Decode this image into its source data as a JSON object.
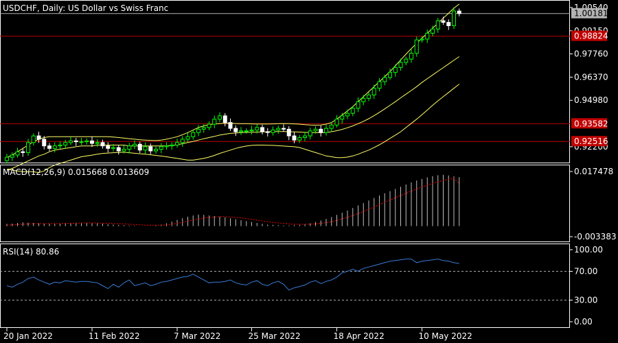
{
  "chart_data": [
    {
      "type": "candlestick",
      "title": "USDCHF, Daily:  US Dollar vs Swiss Franc",
      "ylim": [
        0.9125,
        1.0095
      ],
      "yticks": [
        {
          "label": "1.00540",
          "value": 1.0054
        },
        {
          "label": "0.99150",
          "value": 0.9915
        },
        {
          "label": "0.97760",
          "value": 0.9776
        },
        {
          "label": "0.96370",
          "value": 0.9637
        },
        {
          "label": "0.94980",
          "value": 0.9498
        },
        {
          "label": "0.92200",
          "value": 0.922
        }
      ],
      "xticks": [
        {
          "label": "20 Jan 2022",
          "index": 0
        },
        {
          "label": "11 Feb 2022",
          "index": 16
        },
        {
          "label": "7 Mar 2022",
          "index": 32
        },
        {
          "label": "25 Mar 2022",
          "index": 46
        },
        {
          "label": "18 Apr 2022",
          "index": 62
        },
        {
          "label": "10 May 2022",
          "index": 78
        }
      ],
      "current_price": {
        "label": "1.00181",
        "value": 1.00181,
        "color": "#b3b3b3"
      },
      "horizontal_lines": [
        {
          "label": "0.98824",
          "value": 0.98824,
          "color": "#c00000"
        },
        {
          "label": "0.93582",
          "value": 0.93582,
          "color": "#c00000"
        },
        {
          "label": "0.92516",
          "value": 0.92516,
          "color": "#c00000"
        }
      ],
      "up_color": "#00ff00",
      "down_color": "#ffffff",
      "band_color": "#ffff66",
      "close": [
        0.9157,
        0.917,
        0.919,
        0.9185,
        0.9245,
        0.9285,
        0.9265,
        0.9225,
        0.921,
        0.9225,
        0.923,
        0.9245,
        0.9255,
        0.925,
        0.925,
        0.9255,
        0.924,
        0.9245,
        0.9225,
        0.921,
        0.9215,
        0.9195,
        0.9205,
        0.9225,
        0.9235,
        0.92,
        0.922,
        0.9195,
        0.9205,
        0.922,
        0.9225,
        0.923,
        0.9245,
        0.9265,
        0.928,
        0.9305,
        0.9325,
        0.9335,
        0.9355,
        0.9385,
        0.9405,
        0.9365,
        0.933,
        0.931,
        0.9315,
        0.9315,
        0.932,
        0.9335,
        0.931,
        0.9305,
        0.932,
        0.933,
        0.9325,
        0.9285,
        0.926,
        0.9275,
        0.9285,
        0.9315,
        0.9325,
        0.9305,
        0.933,
        0.935,
        0.9385,
        0.9405,
        0.942,
        0.945,
        0.949,
        0.951,
        0.953,
        0.957,
        0.961,
        0.9635,
        0.9665,
        0.9695,
        0.9725,
        0.9745,
        0.978,
        0.986,
        0.9865,
        0.99,
        0.9925,
        0.9975,
        0.9965,
        0.9945,
        1.0033,
        1.0018
      ],
      "bollinger": {
        "period": 20,
        "middle": [
          0.908,
          0.909,
          0.9105,
          0.912,
          0.9135,
          0.915,
          0.9165,
          0.9175,
          0.919,
          0.92,
          0.9205,
          0.921,
          0.9215,
          0.922,
          0.9225,
          0.9225,
          0.9225,
          0.923,
          0.923,
          0.923,
          0.923,
          0.923,
          0.923,
          0.9225,
          0.9225,
          0.9225,
          0.9225,
          0.9225,
          0.9225,
          0.9225,
          0.9225,
          0.9228,
          0.9232,
          0.9238,
          0.9245,
          0.9252,
          0.926,
          0.9268,
          0.9275,
          0.9282,
          0.929,
          0.9295,
          0.93,
          0.9302,
          0.9305,
          0.9306,
          0.9307,
          0.9308,
          0.9309,
          0.931,
          0.9311,
          0.9311,
          0.9311,
          0.931,
          0.9309,
          0.9308,
          0.9306,
          0.9305,
          0.9304,
          0.9304,
          0.9305,
          0.931,
          0.9316,
          0.9324,
          0.9334,
          0.9345,
          0.9358,
          0.9372,
          0.9388,
          0.9406,
          0.9426,
          0.9447,
          0.9468,
          0.949,
          0.9513,
          0.9535,
          0.9557,
          0.958,
          0.9605,
          0.9628,
          0.965,
          0.9672,
          0.9694,
          0.9716,
          0.9738,
          0.976
        ],
        "upper": [
          0.9155,
          0.917,
          0.919,
          0.921,
          0.923,
          0.925,
          0.9265,
          0.9275,
          0.928,
          0.928,
          0.928,
          0.928,
          0.928,
          0.928,
          0.928,
          0.928,
          0.928,
          0.928,
          0.928,
          0.928,
          0.9278,
          0.9275,
          0.9272,
          0.9268,
          0.9265,
          0.9262,
          0.926,
          0.9258,
          0.9257,
          0.926,
          0.9265,
          0.9272,
          0.928,
          0.9292,
          0.9305,
          0.932,
          0.9335,
          0.9345,
          0.9352,
          0.9356,
          0.9359,
          0.936,
          0.936,
          0.9359,
          0.9358,
          0.9358,
          0.9357,
          0.9356,
          0.9356,
          0.9356,
          0.9357,
          0.9358,
          0.9359,
          0.9358,
          0.9357,
          0.9355,
          0.9352,
          0.935,
          0.9349,
          0.935,
          0.9355,
          0.9365,
          0.9385,
          0.941,
          0.9435,
          0.946,
          0.949,
          0.952,
          0.955,
          0.958,
          0.961,
          0.964,
          0.967,
          0.9705,
          0.974,
          0.9775,
          0.9808,
          0.984,
          0.987,
          0.99,
          0.993,
          0.996,
          0.999,
          1.002,
          1.005,
          1.0075
        ],
        "lower": [
          0.9085,
          0.908,
          0.9075,
          0.907,
          0.907,
          0.907,
          0.9065,
          0.9075,
          0.9095,
          0.911,
          0.912,
          0.913,
          0.914,
          0.915,
          0.916,
          0.9165,
          0.917,
          0.9175,
          0.918,
          0.9182,
          0.9184,
          0.9186,
          0.9187,
          0.9184,
          0.9181,
          0.9178,
          0.9175,
          0.9172,
          0.9168,
          0.9164,
          0.916,
          0.9155,
          0.915,
          0.9145,
          0.914,
          0.914,
          0.9145,
          0.915,
          0.9158,
          0.9168,
          0.918,
          0.919,
          0.92,
          0.921,
          0.9218,
          0.9224,
          0.9228,
          0.923,
          0.923,
          0.9229,
          0.9228,
          0.9226,
          0.9224,
          0.9222,
          0.922,
          0.9215,
          0.9205,
          0.9195,
          0.9185,
          0.9175,
          0.9165,
          0.916,
          0.9155,
          0.9155,
          0.9158,
          0.9165,
          0.9175,
          0.9188,
          0.92,
          0.9215,
          0.9232,
          0.925,
          0.927,
          0.929,
          0.931,
          0.9335,
          0.936,
          0.9385,
          0.9412,
          0.944,
          0.9468,
          0.9495,
          0.952,
          0.9545,
          0.957,
          0.9595
        ]
      }
    },
    {
      "type": "histogram",
      "title": "MACD(12,26,9) 0.015668 0.013609",
      "ylim": [
        -0.003383,
        0.017478
      ],
      "yticks": [
        {
          "label": "0.017478",
          "value": 0.017478
        },
        {
          "label": "-0.003383",
          "value": -0.003383
        }
      ],
      "bar_color": "#c0c0c0",
      "signal_color": "#ff0000",
      "macd": [
        0.0007,
        0.0008,
        0.001,
        0.0012,
        0.0011,
        0.001,
        0.0009,
        0.0008,
        0.0007,
        0.0008,
        0.0009,
        0.001,
        0.001,
        0.0011,
        0.0011,
        0.001,
        0.0009,
        0.0009,
        0.0008,
        0.0006,
        0.0005,
        0.0004,
        0.0003,
        0.0002,
        0.0001,
        0,
        0,
        0,
        0.0002,
        0.0005,
        0.0009,
        0.0014,
        0.002,
        0.0025,
        0.003,
        0.0034,
        0.0037,
        0.0036,
        0.0034,
        0.0032,
        0.003,
        0.0028,
        0.0025,
        0.0022,
        0.0019,
        0.0016,
        0.0013,
        0.001,
        0.0007,
        0.0005,
        0.0004,
        0.0003,
        0.0002,
        0.0002,
        0.0003,
        0.0004,
        0.0006,
        0.0009,
        0.0013,
        0.0018,
        0.0023,
        0.0029,
        0.0036,
        0.0043,
        0.005,
        0.0058,
        0.0066,
        0.0074,
        0.0082,
        0.009,
        0.0098,
        0.0105,
        0.0112,
        0.0119,
        0.0126,
        0.0133,
        0.014,
        0.0146,
        0.0151,
        0.0156,
        0.016,
        0.0163,
        0.0164,
        0.0162,
        0.0159,
        0.01567
      ],
      "signal": [
        0.0003,
        0.0004,
        0.0005,
        0.0006,
        0.0007,
        0.0008,
        0.0008,
        0.0008,
        0.0008,
        0.0008,
        0.0008,
        0.0009,
        0.0009,
        0.0009,
        0.001,
        0.001,
        0.001,
        0.001,
        0.0009,
        0.0009,
        0.0008,
        0.0008,
        0.0007,
        0.0006,
        0.0005,
        0.0004,
        0.0003,
        0.0003,
        0.0003,
        0.0003,
        0.0004,
        0.0006,
        0.0009,
        0.0012,
        0.0016,
        0.0019,
        0.0023,
        0.0026,
        0.0028,
        0.0029,
        0.003,
        0.003,
        0.0029,
        0.0028,
        0.0026,
        0.0024,
        0.0022,
        0.0019,
        0.0017,
        0.0014,
        0.0012,
        0.001,
        0.0009,
        0.0007,
        0.0006,
        0.0006,
        0.0006,
        0.0006,
        0.0007,
        0.0009,
        0.0011,
        0.0014,
        0.0018,
        0.0023,
        0.0028,
        0.0034,
        0.004,
        0.0047,
        0.0054,
        0.0061,
        0.0069,
        0.0076,
        0.0084,
        0.0091,
        0.0098,
        0.0105,
        0.0112,
        0.0119,
        0.0125,
        0.0131,
        0.0137,
        0.0142,
        0.0146,
        0.015,
        0.0153,
        0.013609
      ]
    },
    {
      "type": "line",
      "title": "RSI(14) 80.86",
      "ylim": [
        0,
        100
      ],
      "yticks": [
        {
          "label": "100.00",
          "value": 100
        },
        {
          "label": "70.00",
          "value": 70
        },
        {
          "label": "30.00",
          "value": 30
        },
        {
          "label": "0.00",
          "value": 0
        }
      ],
      "levels": [
        70,
        30
      ],
      "line_color": "#3a7bd5",
      "rsi": [
        50,
        48,
        52,
        55,
        60,
        62,
        58,
        55,
        52,
        55,
        54,
        57,
        56,
        55,
        56,
        56,
        55,
        54,
        50,
        46,
        52,
        48,
        54,
        58,
        50,
        52,
        54,
        50,
        52,
        55,
        56,
        58,
        60,
        62,
        63,
        66,
        62,
        58,
        54,
        55,
        55,
        56,
        58,
        54,
        52,
        51,
        55,
        57,
        52,
        50,
        54,
        56,
        52,
        44,
        47,
        49,
        51,
        55,
        57,
        53,
        56,
        58,
        62,
        68,
        70,
        73,
        70,
        74,
        76,
        78,
        80,
        82,
        84,
        85,
        86,
        87,
        87,
        82,
        84,
        85,
        86,
        87,
        85,
        84,
        82,
        80.86
      ]
    }
  ]
}
